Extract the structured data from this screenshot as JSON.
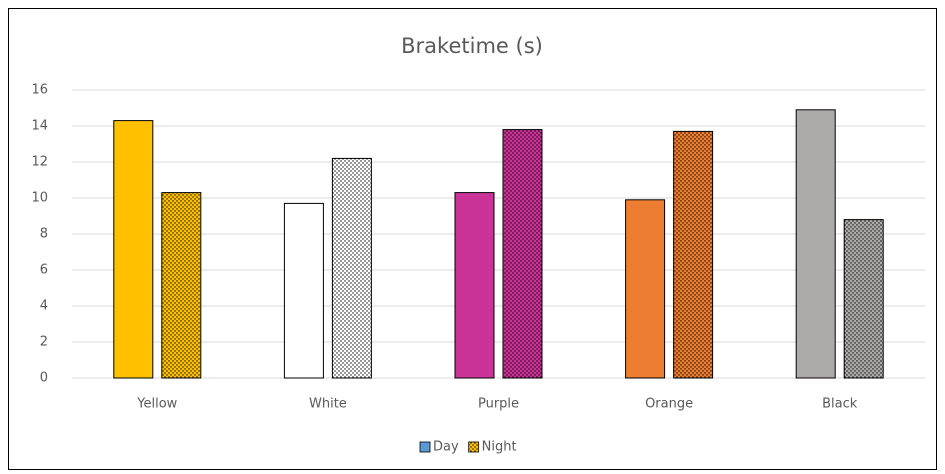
{
  "chart_data": {
    "type": "bar",
    "title": "Braketime (s)",
    "categories": [
      "Yellow",
      "White",
      "Purple",
      "Orange",
      "Black"
    ],
    "category_colors": [
      "#ffc000",
      "#ffffff",
      "#cc3399",
      "#ed7d31",
      "#aeaaaa"
    ],
    "series": [
      {
        "name": "Day",
        "color": "#5b9bd5",
        "values": [
          14.3,
          9.7,
          10.3,
          9.9,
          14.9
        ]
      },
      {
        "name": "Night",
        "color": "#ffc000",
        "pattern": "dots",
        "values": [
          10.3,
          12.2,
          13.8,
          13.7,
          8.8
        ]
      }
    ],
    "ylim": [
      0,
      16
    ],
    "yticks": [
      0,
      2,
      4,
      6,
      8,
      10,
      12,
      14,
      16
    ],
    "grid": true,
    "legend": "bottom"
  }
}
